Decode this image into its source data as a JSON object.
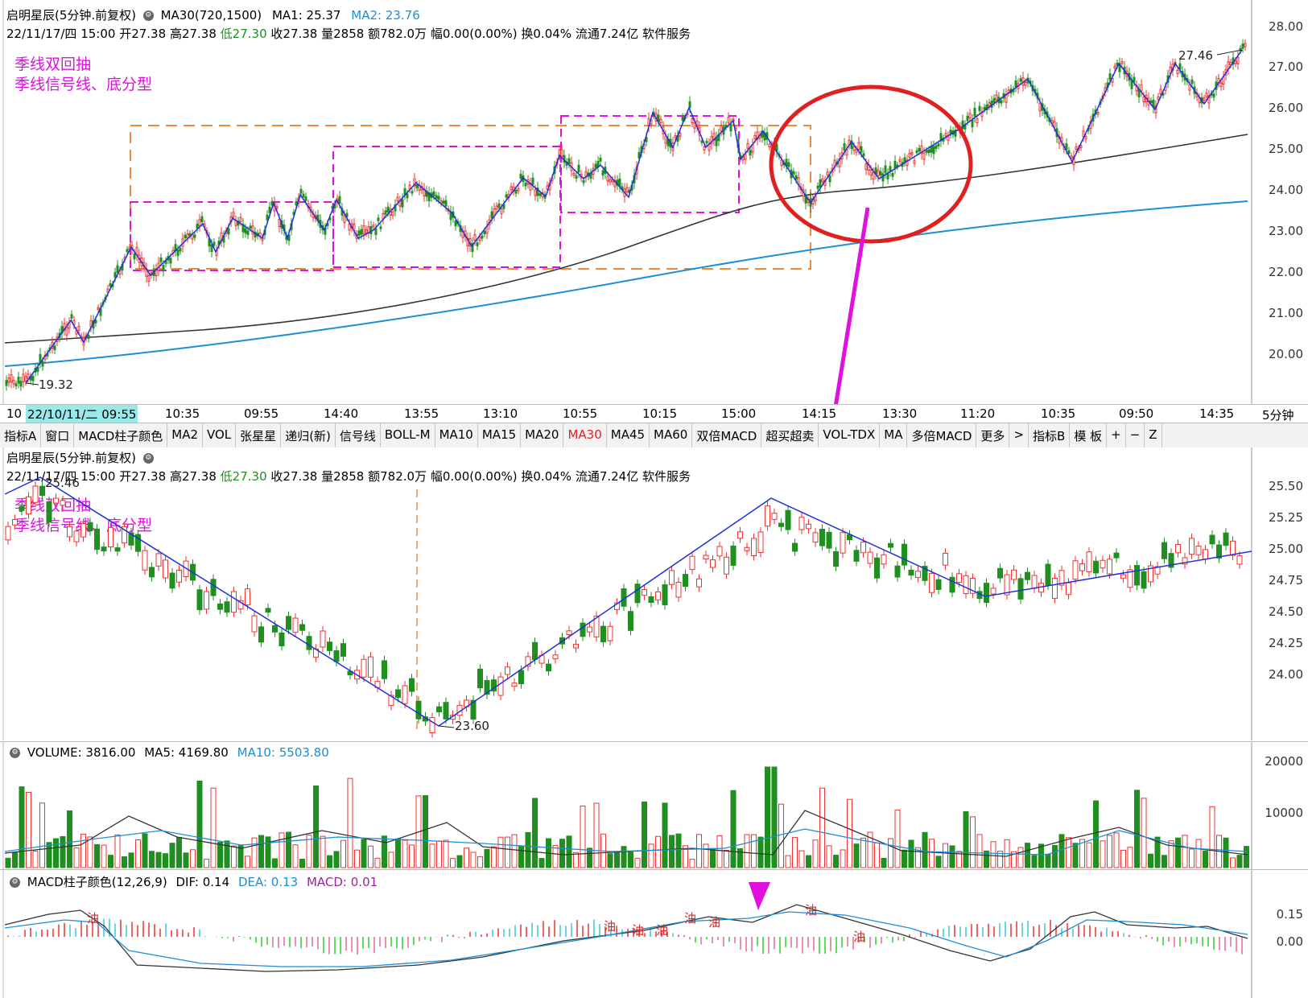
{
  "top": {
    "title": "启明星辰(5分钟.前复权)",
    "ma30": "MA30(720,1500)",
    "ma1": "MA1: 25.37",
    "ma2": "MA2: 23.76",
    "info": {
      "date": "22/11/17/四 15:00",
      "open": "开27.38",
      "high": "高27.38",
      "low": "低27.30",
      "close": "收27.38",
      "vol": "量2858",
      "amt": "额782.0万",
      "chg": "幅0.00(0.00%)",
      "turn": "换0.04%",
      "float": "流通7.24亿",
      "ind": "软件服务"
    },
    "note1": "季线双回抽",
    "note2": "季线信号线、底分型",
    "axis": [
      "28.00",
      "27.00",
      "26.00",
      "25.00",
      "24.00",
      "23.00",
      "22.00",
      "21.00",
      "20.00"
    ],
    "low_label": "19.32",
    "high_label": "27.46"
  },
  "timeaxis": {
    "cursor": "22/10/11/二 09:55",
    "prefix": "10",
    "ticks": [
      "10:35",
      "09:55",
      "14:40",
      "13:55",
      "13:10",
      "10:55",
      "10:15",
      "15:00",
      "14:15",
      "13:30",
      "11:20",
      "10:35",
      "09:50",
      "14:35"
    ],
    "period": "5分钟"
  },
  "toolbar": [
    "指标A",
    "窗口",
    "MACD柱子颜色",
    "MA2",
    "VOL",
    "张星星",
    "递归(新)",
    "信号线",
    "BOLL-M",
    "MA10",
    "MA15",
    "MA20",
    "MA30",
    "MA45",
    "MA60",
    "双倍MACD",
    "超买超卖",
    "VOL-TDX",
    "MA",
    "多倍MACD",
    "更多",
    ">",
    "指标B",
    "模 板",
    "+",
    "−",
    "Z"
  ],
  "mid": {
    "title": "启明星辰(5分钟.前复权)",
    "axis": [
      "25.50",
      "25.25",
      "25.00",
      "24.75",
      "24.50",
      "24.25",
      "24.00"
    ],
    "high_label": "25.46",
    "low_label": "23.60"
  },
  "volume": {
    "label": "VOLUME: 3816.00",
    "ma5": "MA5: 4169.80",
    "ma10": "MA10: 5503.80",
    "axis": [
      "20000",
      "10000"
    ]
  },
  "macd": {
    "label": "MACD柱子颜色(12,26,9)",
    "dif": "DIF: 0.14",
    "dea": "DEA: 0.13",
    "macd": "MACD: 0.01",
    "axis": [
      "0.15",
      "0.00"
    ],
    "signal": "油"
  },
  "colors": {
    "up": "#ee3333",
    "down": "#1f8f1f",
    "blue_line": "#1a8fd8",
    "zigzag": "#1a33dd",
    "magenta": "#e010e0",
    "orange": "#f08a3a",
    "circle": "#e02020"
  }
}
